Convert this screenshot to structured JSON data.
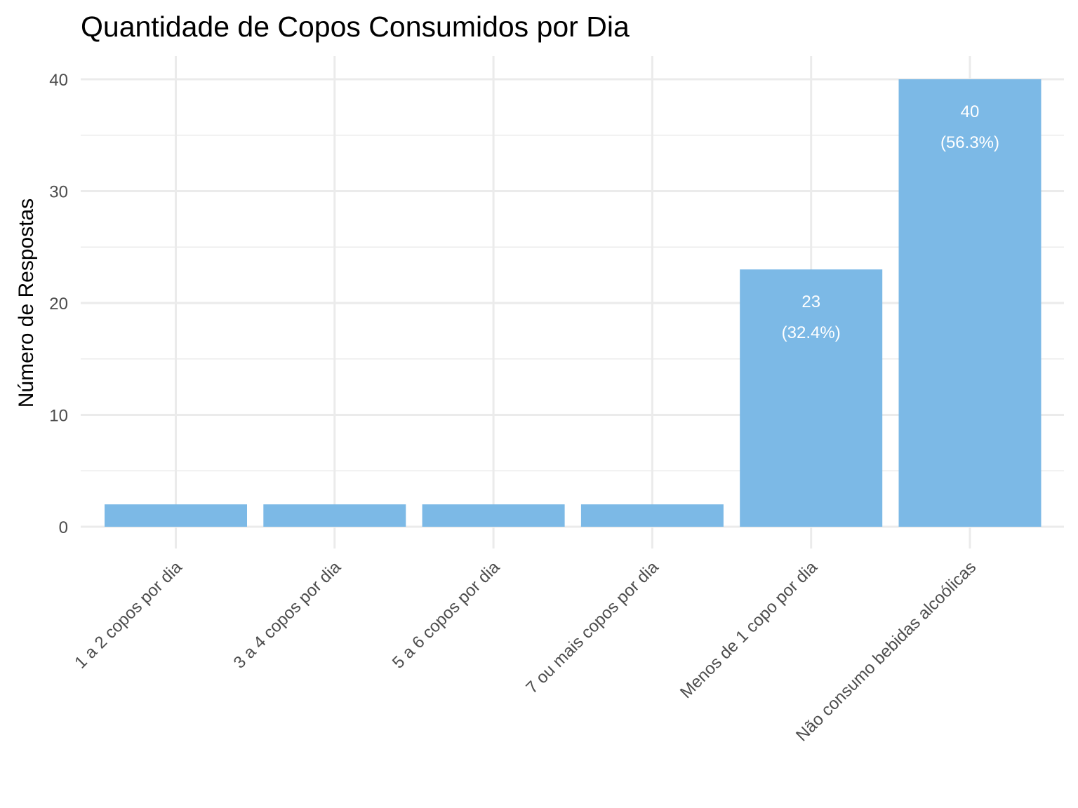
{
  "chart_data": {
    "type": "bar",
    "title": "Quantidade de Copos Consumidos por Dia",
    "xlabel": "",
    "ylabel": "Número de Respostas",
    "categories": [
      "1 a 2 copos por dia",
      "3 a 4 copos por dia",
      "5 a 6 copos por dia",
      "7 ou mais copos por dia",
      "Menos de 1 copo por dia",
      "Não consumo bebidas alcoólicas"
    ],
    "values": [
      2,
      2,
      2,
      2,
      23,
      40
    ],
    "data_labels": [
      null,
      null,
      null,
      null,
      {
        "count": "23",
        "percent": "(32.4%)"
      },
      {
        "count": "40",
        "percent": "(56.3%)"
      }
    ],
    "ylim": [
      0,
      40
    ],
    "yticks": [
      0,
      10,
      20,
      30,
      40
    ],
    "grid": true,
    "bar_color": "#7cb9e6"
  }
}
